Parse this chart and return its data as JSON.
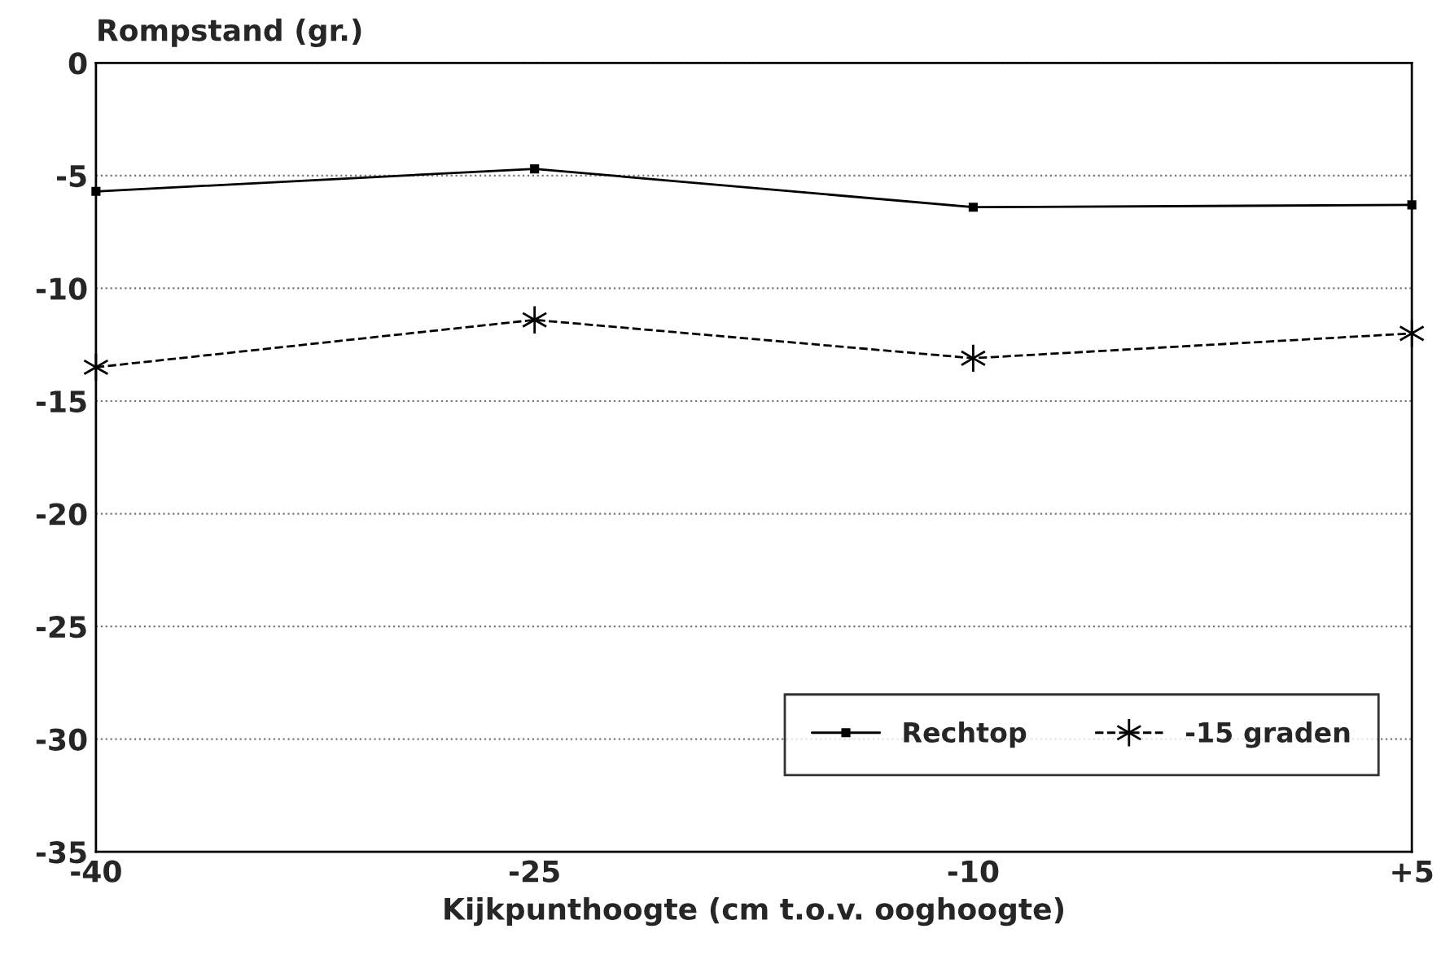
{
  "chart_data": {
    "type": "line",
    "ylabel": "Rompstand (gr.)",
    "xlabel": "Kijkpunthoogte (cm t.o.v. ooghoogte)",
    "x": [
      -40,
      -25,
      -10,
      5
    ],
    "series": [
      {
        "name": "Rechtop",
        "color": "#000000",
        "values": [
          -5.7,
          -4.7,
          -6.4,
          -6.3
        ],
        "marker": "square",
        "line_style": "solid"
      },
      {
        "name": "-15 graden",
        "color": "#000000",
        "values": [
          -13.5,
          -11.4,
          -13.1,
          -12.0
        ],
        "marker": "cross",
        "line_style": "dashed"
      }
    ],
    "xlim": [
      -40,
      5
    ],
    "xticks": [
      -40,
      -25,
      -10,
      {
        "value": 5,
        "label": "+5"
      }
    ],
    "ylim": [
      -35,
      0
    ],
    "yticks": [
      -35,
      -30,
      -25,
      -20,
      -15,
      -10,
      -5,
      0
    ],
    "grid": "y",
    "legend": "bottom right"
  }
}
